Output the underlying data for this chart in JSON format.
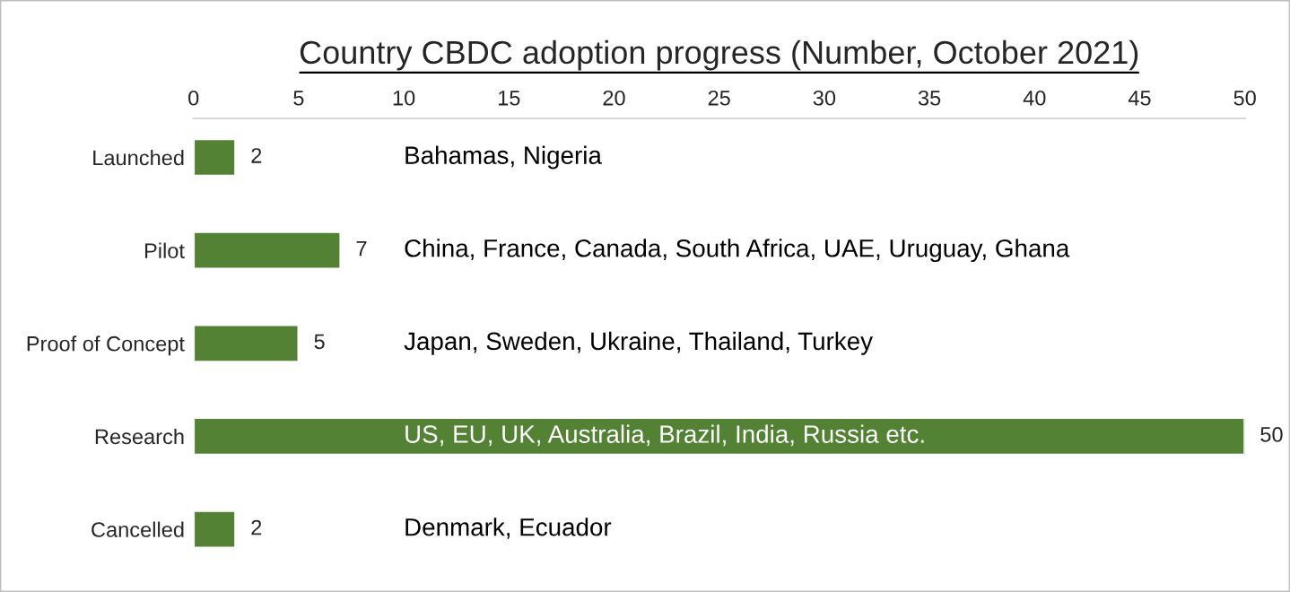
{
  "chart_data": {
    "type": "bar",
    "orientation": "horizontal",
    "title": "Country CBDC adoption progress (Number, October 2021)",
    "categories": [
      "Launched",
      "Pilot",
      "Proof of Concept",
      "Research",
      "Cancelled"
    ],
    "values": [
      2,
      7,
      5,
      50,
      2
    ],
    "color": "#548235",
    "data_labels": true,
    "xlim": [
      0,
      50
    ],
    "xticks": [
      0,
      5,
      10,
      15,
      20,
      25,
      30,
      35,
      40,
      45,
      50
    ],
    "grid": false,
    "annotations": [
      "Bahamas, Nigeria",
      "China, France, Canada, South Africa, UAE, Uruguay, Ghana",
      "Japan, Sweden, Ukraine, Thailand, Turkey",
      "US, EU, UK, Australia, Brazil, India, Russia etc.",
      "Denmark, Ecuador"
    ]
  }
}
